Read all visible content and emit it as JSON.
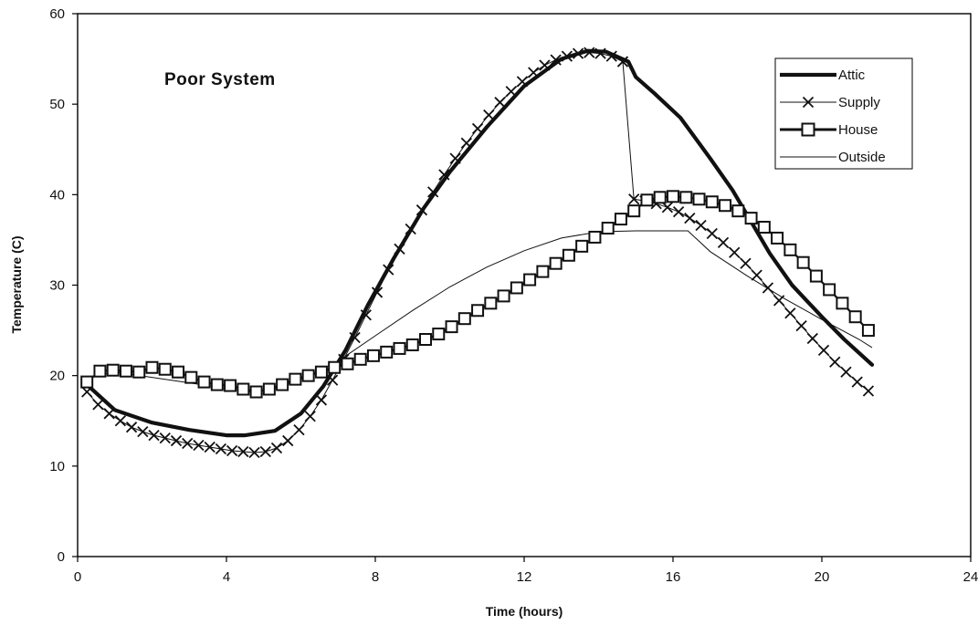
{
  "chart_data": {
    "type": "line",
    "title": "Poor System",
    "xlabel": "Time (hours)",
    "ylabel": "Temperature (C)",
    "xlim": [
      0,
      24
    ],
    "ylim": [
      0,
      60
    ],
    "xticks": [
      0,
      4,
      8,
      12,
      16,
      20,
      24
    ],
    "yticks": [
      0,
      10,
      20,
      30,
      40,
      50,
      60
    ],
    "xtick_labels": [
      "0",
      "4",
      "8",
      "12",
      "16",
      "20",
      "24"
    ],
    "ytick_labels": [
      "0",
      "10",
      "20",
      "30",
      "40",
      "50",
      "60"
    ],
    "grid": false,
    "legend_position": "top-right",
    "series": [
      {
        "name": "Attic",
        "style": "thick",
        "color": "#111111",
        "x": [
          0.25,
          1,
          2,
          3,
          4,
          4.5,
          5.3,
          6,
          6.6,
          7.2,
          7.8,
          8.5,
          9.3,
          10,
          11,
          12,
          13,
          13.7,
          14.2,
          14.8,
          15.0,
          15.5,
          16.2,
          17,
          17.6,
          18.1,
          18.6,
          19.2,
          20,
          20.6,
          21.35
        ],
        "y": [
          19,
          16.2,
          14.8,
          14,
          13.4,
          13.4,
          13.9,
          15.8,
          18.8,
          22.8,
          27.8,
          33,
          38.5,
          42.5,
          47.5,
          52,
          55,
          55.9,
          55.8,
          54.7,
          53,
          51.2,
          48.5,
          44,
          40.5,
          37,
          33.5,
          30,
          26.5,
          24,
          21.2
        ]
      },
      {
        "name": "Supply",
        "style": "x-markers",
        "color": "#111111",
        "x": [
          0.25,
          0.55,
          0.85,
          1.15,
          1.45,
          1.75,
          2.05,
          2.35,
          2.65,
          2.95,
          3.25,
          3.55,
          3.85,
          4.15,
          4.45,
          4.75,
          5.05,
          5.35,
          5.65,
          5.95,
          6.25,
          6.55,
          6.85,
          7.15,
          7.45,
          7.75,
          8.05,
          8.35,
          8.65,
          8.95,
          9.25,
          9.55,
          9.85,
          10.15,
          10.45,
          10.75,
          11.05,
          11.35,
          11.65,
          11.95,
          12.25,
          12.55,
          12.85,
          13.15,
          13.45,
          13.75,
          14.05,
          14.35,
          14.65,
          14.95,
          15.25,
          15.55,
          15.85,
          16.15,
          16.45,
          16.75,
          17.05,
          17.35,
          17.65,
          17.95,
          18.25,
          18.55,
          18.85,
          19.15,
          19.45,
          19.75,
          20.05,
          20.35,
          20.65,
          20.95,
          21.25
        ],
        "y": [
          18.2,
          16.8,
          15.8,
          15.0,
          14.3,
          13.8,
          13.4,
          13.1,
          12.8,
          12.5,
          12.3,
          12.1,
          11.9,
          11.7,
          11.6,
          11.5,
          11.6,
          12.0,
          12.8,
          14.0,
          15.5,
          17.3,
          19.5,
          21.8,
          24.2,
          26.7,
          29.2,
          31.7,
          34.0,
          36.2,
          38.3,
          40.3,
          42.2,
          44.0,
          45.7,
          47.3,
          48.8,
          50.2,
          51.4,
          52.5,
          53.5,
          54.3,
          54.9,
          55.3,
          55.6,
          55.7,
          55.6,
          55.3,
          54.7,
          39.5,
          39.3,
          39.0,
          38.6,
          38.1,
          37.4,
          36.6,
          35.7,
          34.7,
          33.6,
          32.4,
          31.1,
          29.7,
          28.3,
          26.9,
          25.5,
          24.1,
          22.8,
          21.5,
          20.4,
          19.3,
          18.3
        ]
      },
      {
        "name": "House",
        "style": "square-markers",
        "color": "#111111",
        "x": [
          0.25,
          0.6,
          0.95,
          1.3,
          1.65,
          2.0,
          2.35,
          2.7,
          3.05,
          3.4,
          3.75,
          4.1,
          4.45,
          4.8,
          5.15,
          5.5,
          5.85,
          6.2,
          6.55,
          6.9,
          7.25,
          7.6,
          7.95,
          8.3,
          8.65,
          9.0,
          9.35,
          9.7,
          10.05,
          10.4,
          10.75,
          11.1,
          11.45,
          11.8,
          12.15,
          12.5,
          12.85,
          13.2,
          13.55,
          13.9,
          14.25,
          14.6,
          14.95,
          15.3,
          15.65,
          16.0,
          16.35,
          16.7,
          17.05,
          17.4,
          17.75,
          18.1,
          18.45,
          18.8,
          19.15,
          19.5,
          19.85,
          20.2,
          20.55,
          20.9,
          21.25
        ],
        "y": [
          19.3,
          20.5,
          20.6,
          20.5,
          20.4,
          20.9,
          20.7,
          20.4,
          19.8,
          19.3,
          19.0,
          18.9,
          18.5,
          18.2,
          18.5,
          19.0,
          19.6,
          20.0,
          20.4,
          20.9,
          21.3,
          21.8,
          22.2,
          22.6,
          23.0,
          23.4,
          24.0,
          24.6,
          25.4,
          26.3,
          27.2,
          28.0,
          28.8,
          29.7,
          30.6,
          31.5,
          32.4,
          33.3,
          34.3,
          35.3,
          36.3,
          37.3,
          38.2,
          39.4,
          39.7,
          39.8,
          39.7,
          39.5,
          39.2,
          38.8,
          38.2,
          37.4,
          36.4,
          35.2,
          33.9,
          32.5,
          31.0,
          29.5,
          28.0,
          26.5,
          25.0
        ]
      },
      {
        "name": "Outside",
        "style": "thin",
        "color": "#111111",
        "x": [
          0.25,
          1,
          2,
          3,
          4,
          5,
          6,
          7,
          8,
          9,
          10,
          11,
          12,
          13,
          14,
          15,
          16,
          16.4,
          17,
          18,
          19,
          20,
          21,
          21.35
        ],
        "y": [
          19.8,
          20.4,
          19.8,
          19.2,
          18.6,
          18.0,
          19.6,
          21.6,
          24.4,
          27.2,
          29.8,
          32.0,
          33.8,
          35.2,
          35.9,
          36.0,
          36.0,
          36.0,
          33.7,
          31.0,
          28.5,
          26.2,
          24.0,
          23.1
        ]
      }
    ]
  }
}
